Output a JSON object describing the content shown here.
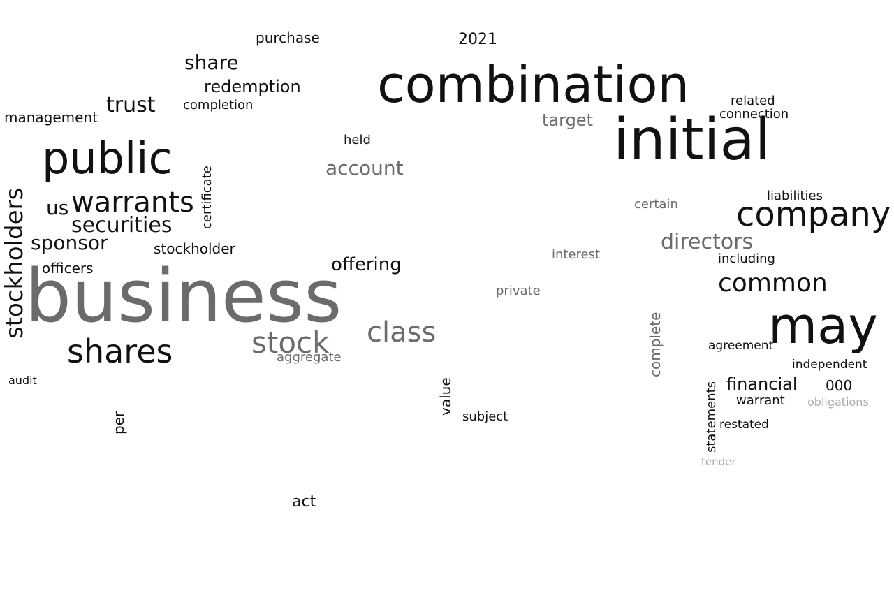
{
  "colors": {
    "black": "#111111",
    "dark_gray": "#6b6b6b",
    "light_gray": "#a8a8a8",
    "background": "#ffffff"
  },
  "words": [
    {
      "text": "business",
      "tone": "dark_gray",
      "weight": 1,
      "rotated": false
    },
    {
      "text": "combination",
      "tone": "black",
      "weight": 0.68,
      "rotated": false
    },
    {
      "text": "initial",
      "tone": "black",
      "weight": 0.66,
      "rotated": false
    },
    {
      "text": "public",
      "tone": "black",
      "weight": 0.56,
      "rotated": false
    },
    {
      "text": "company",
      "tone": "black",
      "weight": 0.52,
      "rotated": false
    },
    {
      "text": "may",
      "tone": "black",
      "weight": 0.66,
      "rotated": false
    },
    {
      "text": "shares",
      "tone": "black",
      "weight": 0.44,
      "rotated": false
    },
    {
      "text": "stock",
      "tone": "dark_gray",
      "weight": 0.4,
      "rotated": false
    },
    {
      "text": "class",
      "tone": "dark_gray",
      "weight": 0.36,
      "rotated": false
    },
    {
      "text": "warrants",
      "tone": "black",
      "weight": 0.36,
      "rotated": false
    },
    {
      "text": "stockholders",
      "tone": "black",
      "weight": 0.33,
      "rotated": true
    },
    {
      "text": "common",
      "tone": "black",
      "weight": 0.3,
      "rotated": false
    },
    {
      "text": "securities",
      "tone": "black",
      "weight": 0.27,
      "rotated": false
    },
    {
      "text": "directors",
      "tone": "dark_gray",
      "weight": 0.28,
      "rotated": false
    },
    {
      "text": "sponsor",
      "tone": "black",
      "weight": 0.26,
      "rotated": false
    },
    {
      "text": "trust",
      "tone": "black",
      "weight": 0.26,
      "rotated": false
    },
    {
      "text": "us",
      "tone": "black",
      "weight": 0.26,
      "rotated": false
    },
    {
      "text": "account",
      "tone": "dark_gray",
      "weight": 0.24,
      "rotated": false
    },
    {
      "text": "offering",
      "tone": "black",
      "weight": 0.22,
      "rotated": false
    },
    {
      "text": "share",
      "tone": "black",
      "weight": 0.22,
      "rotated": false
    },
    {
      "text": "redemption",
      "tone": "black",
      "weight": 0.2,
      "rotated": false
    },
    {
      "text": "financial",
      "tone": "black",
      "weight": 0.2,
      "rotated": false
    },
    {
      "text": "target",
      "tone": "dark_gray",
      "weight": 0.19,
      "rotated": false
    },
    {
      "text": "management",
      "tone": "black",
      "weight": 0.17,
      "rotated": false
    },
    {
      "text": "stockholder",
      "tone": "black",
      "weight": 0.16,
      "rotated": false
    },
    {
      "text": "officers",
      "tone": "black",
      "weight": 0.16,
      "rotated": false
    },
    {
      "text": "2021",
      "tone": "black",
      "weight": 0.17,
      "rotated": false
    },
    {
      "text": "value",
      "tone": "black",
      "weight": 0.17,
      "rotated": true
    },
    {
      "text": "per",
      "tone": "black",
      "weight": 0.17,
      "rotated": true
    },
    {
      "text": "complete",
      "tone": "dark_gray",
      "weight": 0.16,
      "rotated": true
    },
    {
      "text": "statements",
      "tone": "black",
      "weight": 0.15,
      "rotated": true
    },
    {
      "text": "purchase",
      "tone": "black",
      "weight": 0.15,
      "rotated": false
    },
    {
      "text": "including",
      "tone": "black",
      "weight": 0.15,
      "rotated": false
    },
    {
      "text": "warrant",
      "tone": "black",
      "weight": 0.15,
      "rotated": false
    },
    {
      "text": "interest",
      "tone": "dark_gray",
      "weight": 0.15,
      "rotated": false
    },
    {
      "text": "subject",
      "tone": "black",
      "weight": 0.15,
      "rotated": false
    },
    {
      "text": "completion",
      "tone": "black",
      "weight": 0.14,
      "rotated": false
    },
    {
      "text": "certificate",
      "tone": "black",
      "weight": 0.14,
      "rotated": true
    },
    {
      "text": "act",
      "tone": "black",
      "weight": 0.16,
      "rotated": false
    },
    {
      "text": "aggregate",
      "tone": "dark_gray",
      "weight": 0.14,
      "rotated": false
    },
    {
      "text": "held",
      "tone": "black",
      "weight": 0.14,
      "rotated": false
    },
    {
      "text": "audit",
      "tone": "black",
      "weight": 0.13,
      "rotated": false
    },
    {
      "text": "private",
      "tone": "dark_gray",
      "weight": 0.14,
      "rotated": false
    },
    {
      "text": "certain",
      "tone": "dark_gray",
      "weight": 0.14,
      "rotated": false
    },
    {
      "text": "connection",
      "tone": "black",
      "weight": 0.14,
      "rotated": false
    },
    {
      "text": "related",
      "tone": "black",
      "weight": 0.14,
      "rotated": false
    },
    {
      "text": "liabilities",
      "tone": "black",
      "weight": 0.14,
      "rotated": false
    },
    {
      "text": "obligations",
      "tone": "light_gray",
      "weight": 0.13,
      "rotated": false
    },
    {
      "text": "000",
      "tone": "black",
      "weight": 0.15,
      "rotated": false
    },
    {
      "text": "agreement",
      "tone": "black",
      "weight": 0.13,
      "rotated": false
    },
    {
      "text": "independent",
      "tone": "black",
      "weight": 0.13,
      "rotated": false
    },
    {
      "text": "restated",
      "tone": "black",
      "weight": 0.13,
      "rotated": false
    },
    {
      "text": "tender",
      "tone": "light_gray",
      "weight": 0.12,
      "rotated": false
    }
  ]
}
